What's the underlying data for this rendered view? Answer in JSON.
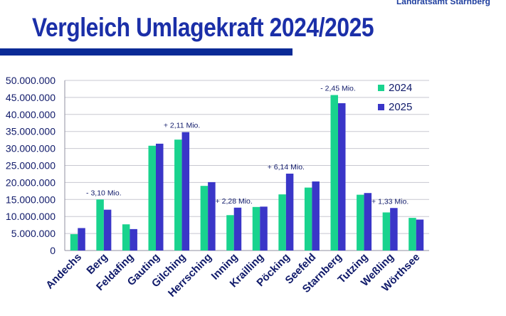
{
  "header": {
    "org": "Landratsamt Starnberg",
    "title": "Vergleich Umlagekraft 2024/2025"
  },
  "colors": {
    "title": "#1b2fa8",
    "rule": "#0b2a96",
    "series_2024": "#19d38e",
    "series_2025": "#3a36c8",
    "grid": "#c8c8d0",
    "text": "#101a6a"
  },
  "chart_data": {
    "type": "bar",
    "title": "",
    "xlabel": "",
    "ylabel": "",
    "ylim": [
      0,
      50000000
    ],
    "yticks": [
      0,
      5000000,
      10000000,
      15000000,
      20000000,
      25000000,
      30000000,
      35000000,
      40000000,
      45000000,
      50000000
    ],
    "ytick_labels": [
      "0",
      "5.000.000",
      "10.000.000",
      "15.000.000",
      "20.000.000",
      "25.000.000",
      "30.000.000",
      "35.000.000",
      "40.000.000",
      "45.000.000",
      "50.000.000"
    ],
    "grid": true,
    "legend_position": "top-right",
    "categories": [
      "Andechs",
      "Berg",
      "Feldafing",
      "Gauting",
      "Gilching",
      "Herrsching",
      "Inning",
      "Krailling",
      "Pöcking",
      "Seefeld",
      "Starnberg",
      "Tutzing",
      "Weßling",
      "Wörthsee"
    ],
    "series": [
      {
        "name": "2024",
        "color": "#19d38e",
        "values": [
          4800000,
          15000000,
          7700000,
          30800000,
          32600000,
          19000000,
          10400000,
          12800000,
          16500000,
          18500000,
          45700000,
          16400000,
          11200000,
          9600000
        ]
      },
      {
        "name": "2025",
        "color": "#3a36c8",
        "values": [
          6600000,
          12000000,
          6300000,
          31400000,
          34800000,
          20100000,
          12600000,
          12900000,
          22600000,
          20300000,
          43300000,
          16900000,
          12500000,
          9100000
        ]
      }
    ],
    "annotations": [
      {
        "category": "Berg",
        "text": "- 3,10 Mio."
      },
      {
        "category": "Gilching",
        "text": "+ 2,11 Mio."
      },
      {
        "category": "Inning",
        "text": "+ 2,28 Mio."
      },
      {
        "category": "Pöcking",
        "text": "+ 6,14 Mio."
      },
      {
        "category": "Starnberg",
        "text": "- 2,45 Mio."
      },
      {
        "category": "Weßling",
        "text": "+ 1,33 Mio."
      }
    ]
  }
}
